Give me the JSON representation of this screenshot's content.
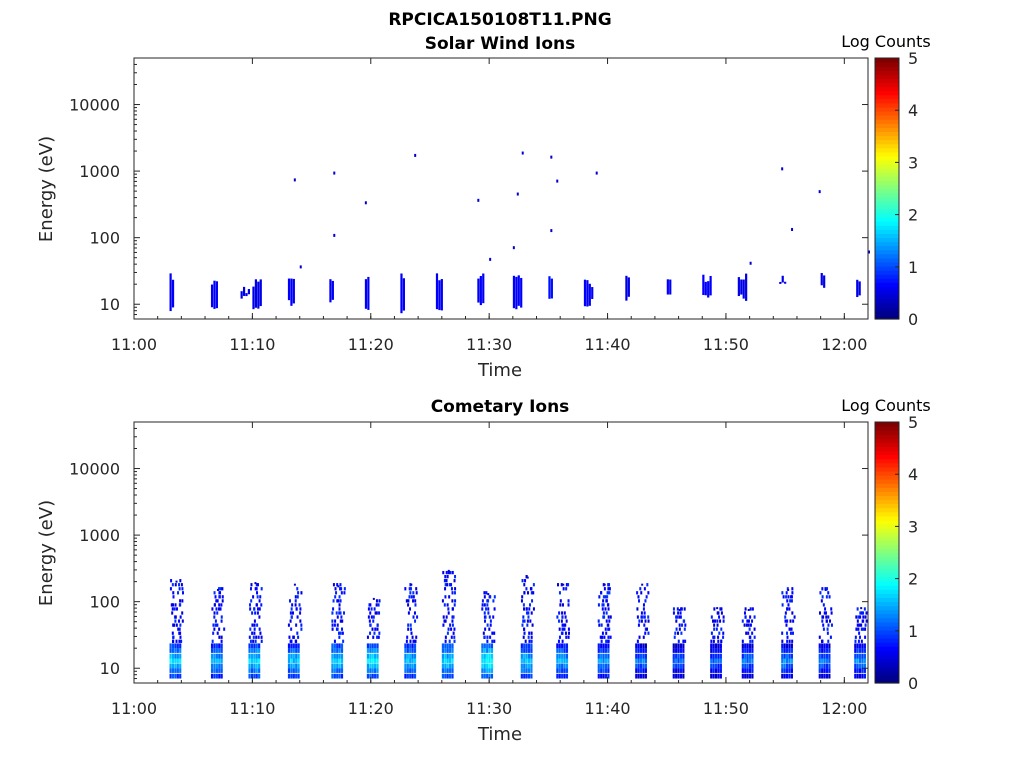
{
  "figure": {
    "title": "RPCICA150108T11.PNG"
  },
  "chart_data": [
    {
      "type": "heatmap",
      "title": "Solar Wind Ions",
      "xlabel": "Time",
      "ylabel": "Energy (eV)",
      "x_scale": "time",
      "y_scale": "log",
      "xlim": [
        "11:00",
        "12:02"
      ],
      "ylim": [
        6,
        50000
      ],
      "x_ticks": [
        "11:00",
        "11:10",
        "11:20",
        "11:30",
        "11:40",
        "11:50",
        "12:00"
      ],
      "y_ticks": [
        "10",
        "100",
        "1000",
        "10000"
      ],
      "grid": false,
      "colorbar": {
        "label": "Log Counts",
        "range": [
          0,
          5
        ],
        "ticks": [
          "0",
          "1",
          "2",
          "3",
          "4",
          "5"
        ],
        "colormap": "jet"
      },
      "cells": [
        {
          "t": "11:03",
          "e_min": 8,
          "e_max": 27,
          "value": 0.6
        },
        {
          "t": "11:06:30",
          "e_min": 8,
          "e_max": 22,
          "value": 0.6
        },
        {
          "t": "11:09",
          "e_min": 12,
          "e_max": 18,
          "value": 0.5
        },
        {
          "t": "11:10",
          "e_min": 8,
          "e_max": 22,
          "value": 0.5
        },
        {
          "t": "11:13",
          "e_min": 10,
          "e_max": 27,
          "value": 0.6
        },
        {
          "t": "11:16:30",
          "e_min": 10,
          "e_max": 22,
          "value": 0.6
        },
        {
          "t": "11:19:30",
          "e_min": 8,
          "e_max": 27,
          "value": 0.6
        },
        {
          "t": "11:22:30",
          "e_min": 8,
          "e_max": 27,
          "value": 0.6
        },
        {
          "t": "11:25:30",
          "e_min": 8,
          "e_max": 27,
          "value": 0.6
        },
        {
          "t": "11:29",
          "e_min": 10,
          "e_max": 27,
          "value": 0.6
        },
        {
          "t": "11:32",
          "e_min": 8,
          "e_max": 27,
          "value": 0.6
        },
        {
          "t": "11:35",
          "e_min": 12,
          "e_max": 27,
          "value": 0.7
        },
        {
          "t": "11:38",
          "e_min": 10,
          "e_max": 22,
          "value": 0.6
        },
        {
          "t": "11:41:30",
          "e_min": 12,
          "e_max": 27,
          "value": 0.5
        },
        {
          "t": "11:45",
          "e_min": 12,
          "e_max": 22,
          "value": 0.6
        },
        {
          "t": "11:48",
          "e_min": 14,
          "e_max": 27,
          "value": 0.6
        },
        {
          "t": "11:51",
          "e_min": 12,
          "e_max": 27,
          "value": 0.5
        },
        {
          "t": "11:54:30",
          "e_min": 18,
          "e_max": 27,
          "value": 0.5
        },
        {
          "t": "11:58",
          "e_min": 18,
          "e_max": 27,
          "value": 0.5
        },
        {
          "t": "12:01",
          "e_min": 12,
          "e_max": 27,
          "value": 0.5
        }
      ],
      "scatter": [
        {
          "t": "11:13:30",
          "e": 750
        },
        {
          "t": "11:16:50",
          "e": 950
        },
        {
          "t": "11:19:30",
          "e": 340
        },
        {
          "t": "11:23:40",
          "e": 1750
        },
        {
          "t": "11:29",
          "e": 370
        },
        {
          "t": "11:32:20",
          "e": 460
        },
        {
          "t": "11:32:45",
          "e": 1900
        },
        {
          "t": "11:35:10",
          "e": 1650
        },
        {
          "t": "11:35:40",
          "e": 720
        },
        {
          "t": "11:39",
          "e": 950
        },
        {
          "t": "11:54:40",
          "e": 1100
        },
        {
          "t": "11:57:50",
          "e": 500
        },
        {
          "t": "11:55:30",
          "e": 135
        },
        {
          "t": "11:16:50",
          "e": 110
        },
        {
          "t": "11:14",
          "e": 37
        },
        {
          "t": "11:30",
          "e": 48
        },
        {
          "t": "11:35:10",
          "e": 130
        },
        {
          "t": "11:52",
          "e": 42
        },
        {
          "t": "12:02",
          "e": 62
        },
        {
          "t": "11:32",
          "e": 72
        }
      ]
    },
    {
      "type": "heatmap",
      "title": "Cometary Ions",
      "xlabel": "Time",
      "ylabel": "Energy (eV)",
      "x_scale": "time",
      "y_scale": "log",
      "xlim": [
        "11:00",
        "12:02"
      ],
      "ylim": [
        6,
        50000
      ],
      "x_ticks": [
        "11:00",
        "11:10",
        "11:20",
        "11:30",
        "11:40",
        "11:50",
        "12:00"
      ],
      "y_ticks": [
        "10",
        "100",
        "1000",
        "10000"
      ],
      "grid": false,
      "colorbar": {
        "label": "Log Counts",
        "range": [
          0,
          5
        ],
        "ticks": [
          "0",
          "1",
          "2",
          "3",
          "4",
          "5"
        ],
        "colormap": "jet"
      },
      "bursts": [
        {
          "t": "11:03",
          "e_top": 200,
          "peak": 1.9
        },
        {
          "t": "11:06:30",
          "e_top": 150,
          "peak": 1.7
        },
        {
          "t": "11:09:40",
          "e_top": 190,
          "peak": 1.9
        },
        {
          "t": "11:13",
          "e_top": 180,
          "peak": 1.8
        },
        {
          "t": "11:16:40",
          "e_top": 170,
          "peak": 1.9
        },
        {
          "t": "11:19:40",
          "e_top": 110,
          "peak": 2.0
        },
        {
          "t": "11:22:50",
          "e_top": 180,
          "peak": 1.8
        },
        {
          "t": "11:26",
          "e_top": 290,
          "peak": 1.9
        },
        {
          "t": "11:29:20",
          "e_top": 130,
          "peak": 2.1
        },
        {
          "t": "11:32:40",
          "e_top": 230,
          "peak": 1.8
        },
        {
          "t": "11:35:40",
          "e_top": 180,
          "peak": 1.7
        },
        {
          "t": "11:39:10",
          "e_top": 180,
          "peak": 1.6
        },
        {
          "t": "11:42:20",
          "e_top": 180,
          "peak": 1.4
        },
        {
          "t": "11:45:30",
          "e_top": 75,
          "peak": 1.3
        },
        {
          "t": "11:48:40",
          "e_top": 80,
          "peak": 1.3
        },
        {
          "t": "11:51:20",
          "e_top": 75,
          "peak": 1.4
        },
        {
          "t": "11:54:40",
          "e_top": 150,
          "peak": 1.5
        },
        {
          "t": "11:57:50",
          "e_top": 150,
          "peak": 1.4
        },
        {
          "t": "12:00:50",
          "e_top": 80,
          "peak": 1.5
        }
      ]
    }
  ]
}
